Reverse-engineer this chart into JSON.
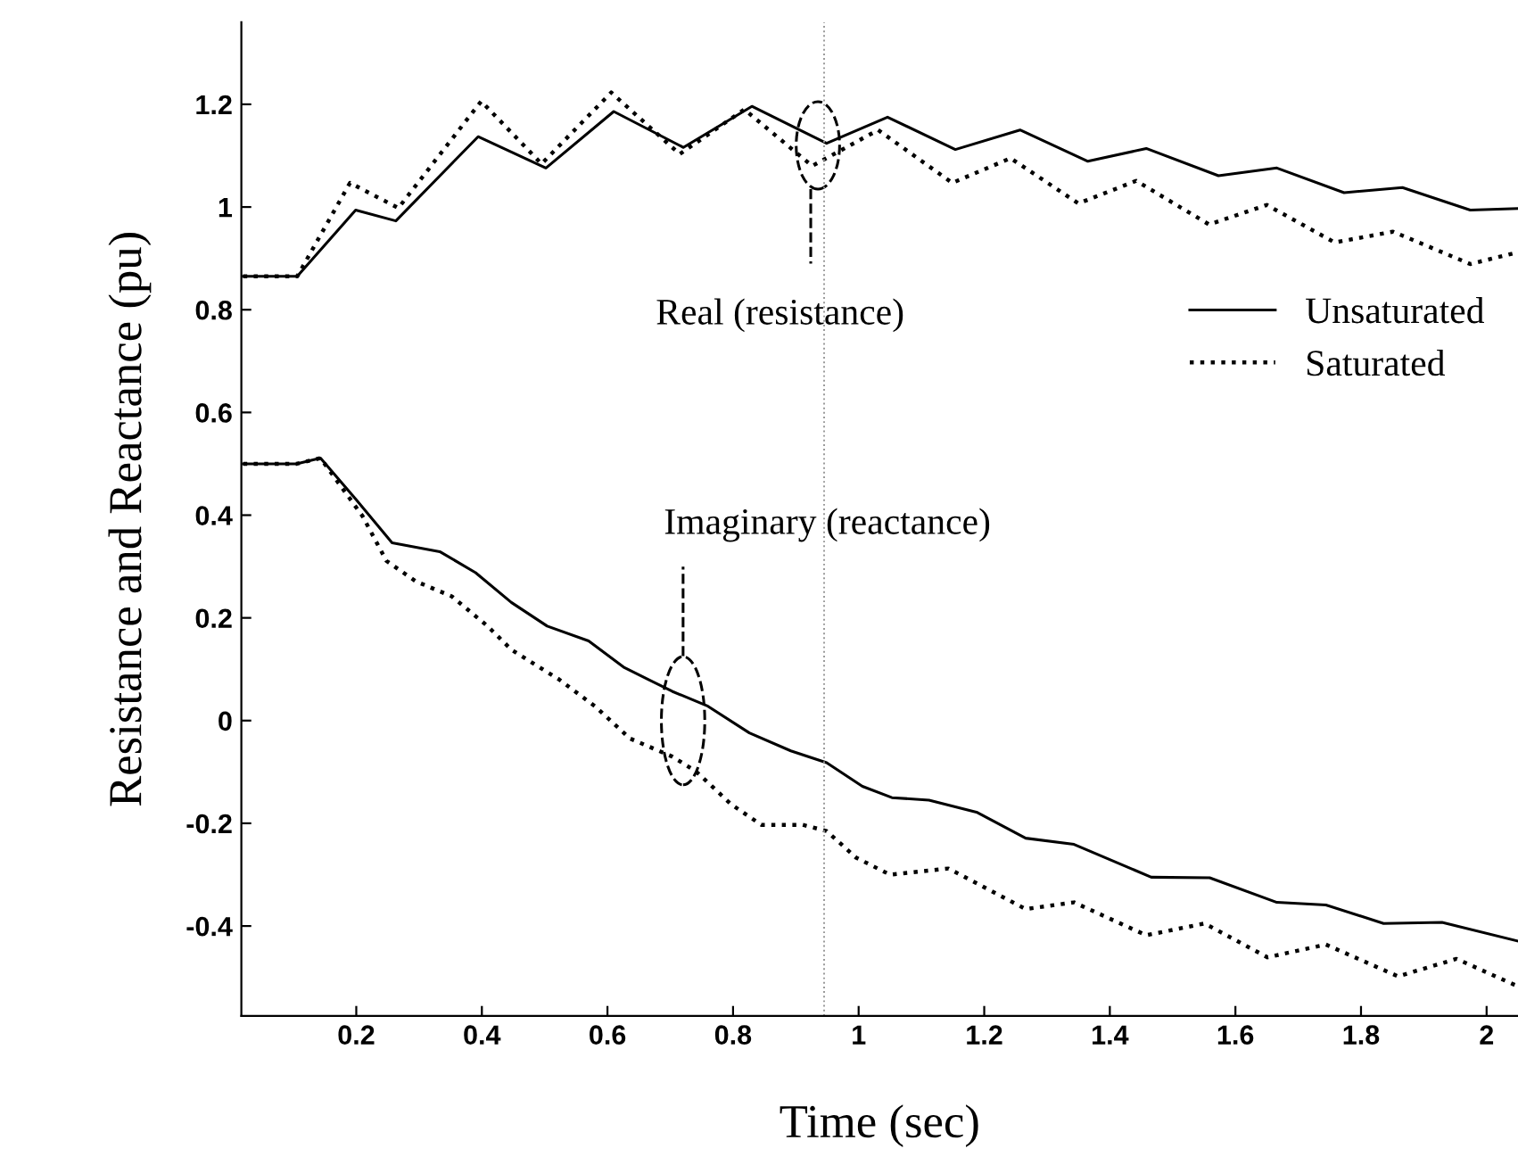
{
  "chart_data": {
    "type": "line",
    "xlabel": "Time (sec)",
    "ylabel": "Resistance and Reactance (pu)",
    "xlim": [
      0.017,
      2.05
    ],
    "ylim": [
      -0.575,
      1.36
    ],
    "xticks": [
      0.2,
      0.4,
      0.6,
      0.8,
      1,
      1.2,
      1.4,
      1.6,
      1.8,
      2
    ],
    "yticks": [
      {
        "value": -0.4,
        "label": "-0.4"
      },
      {
        "value": -0.2,
        "label": "-0.2"
      },
      0,
      0.2,
      0.4,
      0.6,
      0.8,
      1,
      1.2
    ],
    "grid": false,
    "legend": "right",
    "marker": "none",
    "ref_lines": [
      {
        "axis": "x",
        "value": 0.945,
        "color": "#999999",
        "line_style": "dotted"
      }
    ],
    "annotations": [
      "Real (resistance)",
      "Imaginary (reactance)"
    ],
    "series": [
      {
        "name": "Unsaturated",
        "color": "#000000",
        "line_style": "solid",
        "x": [
          0.02,
          0.106,
          0.199,
          0.263,
          0.394,
          0.502,
          0.61,
          0.721,
          0.83,
          0.949,
          1.046,
          1.154,
          1.257,
          1.365,
          1.458,
          1.573,
          1.666,
          1.773,
          1.866,
          1.974,
          2.05
        ],
        "values": [
          0.865,
          0.865,
          0.994,
          0.973,
          1.137,
          1.076,
          1.186,
          1.116,
          1.196,
          1.124,
          1.175,
          1.112,
          1.15,
          1.089,
          1.114,
          1.061,
          1.076,
          1.028,
          1.038,
          0.994,
          0.997
        ]
      },
      {
        "name": "Saturated",
        "color": "#000000",
        "line_style": "dotted",
        "x": [
          0.02,
          0.106,
          0.19,
          0.267,
          0.399,
          0.495,
          0.606,
          0.715,
          0.818,
          0.926,
          1.031,
          1.149,
          1.242,
          1.35,
          1.442,
          1.558,
          1.65,
          1.758,
          1.851,
          1.974,
          2.05
        ],
        "values": [
          0.865,
          0.865,
          1.047,
          0.998,
          1.206,
          1.084,
          1.223,
          1.103,
          1.19,
          1.08,
          1.15,
          1.047,
          1.095,
          1.007,
          1.051,
          0.966,
          1.004,
          0.931,
          0.952,
          0.889,
          0.912
        ]
      },
      {
        "color": "#000000",
        "line_style": "solid",
        "x": [
          0.02,
          0.105,
          0.143,
          0.2,
          0.257,
          0.333,
          0.39,
          0.447,
          0.504,
          0.57,
          0.627,
          0.703,
          0.76,
          0.826,
          0.892,
          0.949,
          1.006,
          1.053,
          1.112,
          1.189,
          1.266,
          1.343,
          1.466,
          1.559,
          1.666,
          1.744,
          1.836,
          1.929,
          2.049
        ],
        "values": [
          0.5,
          0.5,
          0.511,
          0.43,
          0.346,
          0.329,
          0.288,
          0.23,
          0.184,
          0.155,
          0.103,
          0.057,
          0.028,
          -0.024,
          -0.059,
          -0.082,
          -0.128,
          -0.15,
          -0.155,
          -0.179,
          -0.229,
          -0.241,
          -0.305,
          -0.306,
          -0.354,
          -0.359,
          -0.395,
          -0.393,
          -0.429
        ]
      },
      {
        "color": "#000000",
        "line_style": "dotted",
        "x": [
          0.02,
          0.105,
          0.143,
          0.21,
          0.248,
          0.295,
          0.352,
          0.409,
          0.447,
          0.523,
          0.58,
          0.636,
          0.703,
          0.741,
          0.797,
          0.845,
          0.911,
          0.949,
          0.996,
          1.05,
          1.143,
          1.266,
          1.343,
          1.458,
          1.551,
          1.651,
          1.744,
          1.859,
          1.952,
          2.049
        ],
        "values": [
          0.5,
          0.5,
          0.511,
          0.398,
          0.311,
          0.271,
          0.242,
          0.184,
          0.138,
          0.08,
          0.028,
          -0.035,
          -0.07,
          -0.099,
          -0.163,
          -0.203,
          -0.203,
          -0.215,
          -0.267,
          -0.3,
          -0.288,
          -0.367,
          -0.354,
          -0.418,
          -0.395,
          -0.461,
          -0.436,
          -0.498,
          -0.464,
          -0.517
        ]
      }
    ]
  }
}
